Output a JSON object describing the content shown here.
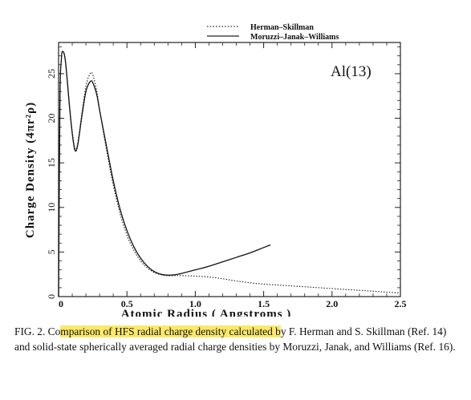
{
  "chart_data": {
    "type": "line",
    "title": "Al(13)",
    "xlabel": "Atomic Radius ( Angstroms )",
    "ylabel": "Charge Density (4πr²ρ)",
    "xlim": [
      0,
      2.5
    ],
    "ylim": [
      0,
      28.5
    ],
    "x_ticks": [
      0,
      0.5,
      1.0,
      1.5,
      2.0,
      2.5
    ],
    "x_tick_labels": [
      "0",
      "0.5",
      "1.0",
      "1.5",
      "2.0",
      "2.5"
    ],
    "y_ticks": [
      0,
      5,
      10,
      15,
      20,
      25
    ],
    "y_tick_labels": [
      "0",
      "5",
      "10",
      "15",
      "20",
      "25"
    ],
    "legend_position": "top-right",
    "series": [
      {
        "name": "Herman–Skillman",
        "style": "dotted",
        "x": [
          0,
          0.01,
          0.02,
          0.03,
          0.05,
          0.08,
          0.1,
          0.12,
          0.14,
          0.17,
          0.2,
          0.23,
          0.25,
          0.28,
          0.3,
          0.35,
          0.4,
          0.45,
          0.5,
          0.55,
          0.6,
          0.65,
          0.7,
          0.75,
          0.8,
          0.85,
          0.9,
          1.0,
          1.1,
          1.2,
          1.3,
          1.4,
          1.5,
          1.6,
          1.7,
          1.8,
          1.9,
          2.0,
          2.1,
          2.2,
          2.3,
          2.4,
          2.5
        ],
        "y": [
          0,
          22,
          26.5,
          27.5,
          26.5,
          21.5,
          18.5,
          16.6,
          17.2,
          20.5,
          23.6,
          25.0,
          24.9,
          23.0,
          21.0,
          16.5,
          12.5,
          9.3,
          6.9,
          5.2,
          4.0,
          3.2,
          2.7,
          2.45,
          2.35,
          2.35,
          2.35,
          2.3,
          2.2,
          2.0,
          1.75,
          1.55,
          1.4,
          1.3,
          1.2,
          1.1,
          1.0,
          0.9,
          0.8,
          0.7,
          0.6,
          0.5,
          0.4
        ]
      },
      {
        "name": "Moruzzi–Janak–Williams",
        "style": "solid",
        "x": [
          0,
          0.01,
          0.02,
          0.03,
          0.05,
          0.08,
          0.1,
          0.12,
          0.14,
          0.17,
          0.2,
          0.23,
          0.25,
          0.28,
          0.3,
          0.35,
          0.4,
          0.45,
          0.5,
          0.55,
          0.6,
          0.65,
          0.7,
          0.75,
          0.8,
          0.85,
          0.9,
          1.0,
          1.1,
          1.2,
          1.3,
          1.4,
          1.5,
          1.55
        ],
        "y": [
          0,
          22,
          26.5,
          27.5,
          26.4,
          21.3,
          18.3,
          16.4,
          17.0,
          20.2,
          23.0,
          24.1,
          24.0,
          22.6,
          20.9,
          16.9,
          13.0,
          9.8,
          7.4,
          5.6,
          4.3,
          3.4,
          2.8,
          2.5,
          2.4,
          2.45,
          2.6,
          3.0,
          3.4,
          3.9,
          4.4,
          4.9,
          5.5,
          5.8
        ]
      }
    ]
  },
  "caption": {
    "prefix": "FIG. 2. Co",
    "highlight": "mparison of HFS radial charge density calculated b",
    "suffix": "y F. Herman and S. Skillman (Ref. 14) and solid-state spherically averaged radial charge densities by Moruzzi, Janak, and Williams (Ref. 16).",
    "highlight_color": "#fce86a"
  }
}
